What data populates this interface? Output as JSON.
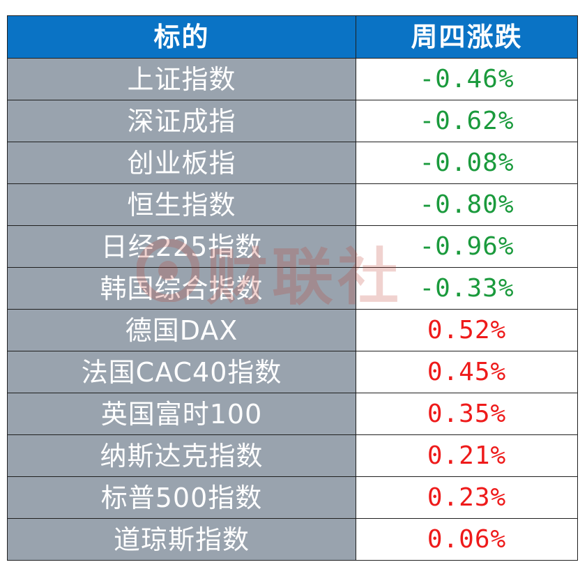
{
  "header": {
    "col_name": "标的",
    "col_change": "周四涨跌"
  },
  "rows": [
    {
      "name": "上证指数",
      "change": "-0.46%",
      "direction": "down"
    },
    {
      "name": "深证成指",
      "change": "-0.62%",
      "direction": "down"
    },
    {
      "name": "创业板指",
      "change": "-0.08%",
      "direction": "down"
    },
    {
      "name": "恒生指数",
      "change": "-0.80%",
      "direction": "down"
    },
    {
      "name": "日经225指数",
      "change": "-0.96%",
      "direction": "down"
    },
    {
      "name": "韩国综合指数",
      "change": "-0.33%",
      "direction": "down"
    },
    {
      "name": "德国DAX",
      "change": "0.52%",
      "direction": "up"
    },
    {
      "name": "法国CAC40指数",
      "change": "0.45%",
      "direction": "up"
    },
    {
      "name": "英国富时100",
      "change": "0.35%",
      "direction": "up"
    },
    {
      "name": "纳斯达克指数",
      "change": "0.21%",
      "direction": "up"
    },
    {
      "name": "标普500指数",
      "change": "0.23%",
      "direction": "up"
    },
    {
      "name": "道琼斯指数",
      "change": "0.06%",
      "direction": "up"
    }
  ],
  "watermark": {
    "text": "财联社",
    "icon": "cls-logo-icon"
  },
  "colors": {
    "header_bg": "#0a73c5",
    "name_bg": "#99a3ae",
    "negative": "#1a9a3c",
    "positive": "#ee1a1a",
    "watermark": "#c0392b"
  }
}
